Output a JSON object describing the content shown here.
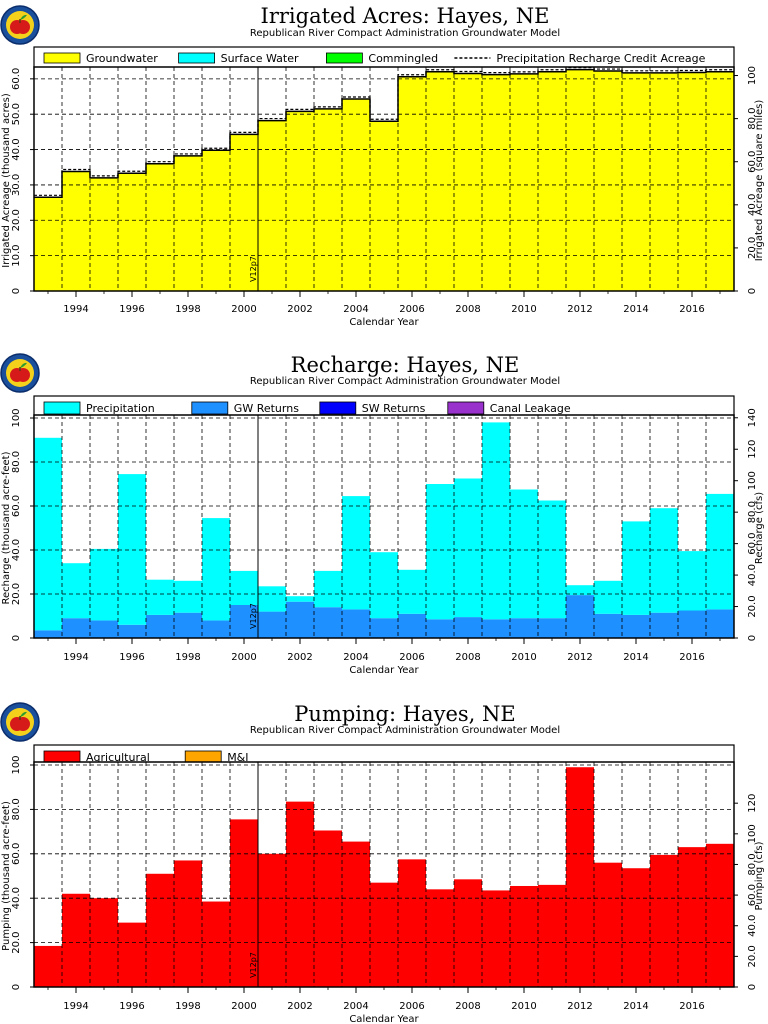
{
  "chart_data": [
    {
      "type": "area",
      "title": "Irrigated Acres: Hayes, NE",
      "subtitle": "Republican River Compact Administration Groundwater Model",
      "xlabel": "Calendar Year",
      "ylabel": "Irrigated Acreage (thousand acres)",
      "ylabel_right": "Irrigated Acreage (square miles)",
      "x_ticks": [
        "1994",
        "1996",
        "1998",
        "2000",
        "2002",
        "2004",
        "2006",
        "2008",
        "2010",
        "2012",
        "2014",
        "2016"
      ],
      "y_ticks": [
        "0",
        "10.0",
        "20.0",
        "30.0",
        "40.0",
        "50.0",
        "60.0"
      ],
      "y2_ticks": [
        "0",
        "20.0",
        "40.0",
        "60.0",
        "80.0",
        "100"
      ],
      "ylim": [
        0,
        62.5
      ],
      "marker_label": "V12p7",
      "marker_year": 2000.5,
      "legend": [
        {
          "label": "Groundwater",
          "color": "#ffff00"
        },
        {
          "label": "Surface Water",
          "color": "#00ffff"
        },
        {
          "label": "Commingled",
          "color": "#00ff00"
        },
        {
          "label": "Precipitation Recharge Credit Acreage",
          "style": "dashed"
        }
      ],
      "years": [
        1993,
        1994,
        1995,
        1996,
        1997,
        1998,
        1999,
        2000,
        2001,
        2002,
        2003,
        2004,
        2005,
        2006,
        2007,
        2008,
        2009,
        2010,
        2011,
        2012,
        2013,
        2014,
        2015,
        2016,
        2017
      ],
      "series": [
        {
          "name": "Groundwater",
          "values": [
            26.5,
            33.8,
            32.0,
            33.3,
            36.0,
            38.2,
            39.8,
            44.3,
            48.2,
            50.8,
            51.5,
            54.3,
            48.0,
            60.6,
            62.0,
            61.5,
            61.2,
            61.4,
            62.0,
            62.6,
            62.2,
            61.7,
            61.7,
            61.8,
            62.0
          ]
        }
      ]
    },
    {
      "type": "bar",
      "title": "Recharge: Hayes, NE",
      "subtitle": "Republican River Compact Administration Groundwater Model",
      "xlabel": "Calendar Year",
      "ylabel": "Recharge (thousand acre-feet)",
      "ylabel_right": "Recharge (cfs)",
      "x_ticks": [
        "1994",
        "1996",
        "1998",
        "2000",
        "2002",
        "2004",
        "2006",
        "2008",
        "2010",
        "2012",
        "2014",
        "2016"
      ],
      "y_ticks": [
        "0",
        "20.0",
        "40.0",
        "60.0",
        "80.0",
        "100"
      ],
      "y2_ticks": [
        "0",
        "20.0",
        "40.0",
        "60.0",
        "80.0",
        "100",
        "120",
        "140"
      ],
      "ylim": [
        0,
        100
      ],
      "marker_label": "V12p7",
      "marker_year": 2000.5,
      "legend": [
        {
          "label": "Precipitation",
          "color": "#00ffff"
        },
        {
          "label": "GW Returns",
          "color": "#1e90ff"
        },
        {
          "label": "SW Returns",
          "color": "#0000ff"
        },
        {
          "label": "Canal Leakage",
          "color": "#9932cc"
        }
      ],
      "years": [
        1993,
        1994,
        1995,
        1996,
        1997,
        1998,
        1999,
        2000,
        2001,
        2002,
        2003,
        2004,
        2005,
        2006,
        2007,
        2008,
        2009,
        2010,
        2011,
        2012,
        2013,
        2014,
        2015,
        2016,
        2017
      ],
      "series": [
        {
          "name": "GW Returns",
          "values": [
            3.5,
            9.0,
            8.0,
            6.0,
            10.5,
            11.5,
            8.0,
            15.0,
            12.0,
            16.5,
            14.0,
            13.0,
            9.0,
            11.0,
            8.5,
            9.5,
            8.5,
            9.0,
            9.0,
            19.5,
            11.0,
            10.5,
            11.5,
            12.5,
            13.0
          ]
        },
        {
          "name": "Precipitation",
          "values": [
            87.5,
            25.0,
            32.5,
            68.5,
            16.0,
            14.5,
            46.5,
            15.5,
            11.5,
            2.5,
            16.5,
            51.5,
            30.0,
            20.0,
            61.5,
            63.0,
            89.5,
            58.5,
            53.5,
            4.5,
            15.0,
            42.5,
            47.5,
            27.0,
            52.5
          ]
        }
      ]
    },
    {
      "type": "bar",
      "title": "Pumping: Hayes, NE",
      "subtitle": "Republican River Compact Administration Groundwater Model",
      "xlabel": "Calendar Year",
      "ylabel": "Pumping (thousand acre-feet)",
      "ylabel_right": "Pumping (cfs)",
      "x_ticks": [
        "1994",
        "1996",
        "1998",
        "2000",
        "2002",
        "2004",
        "2006",
        "2008",
        "2010",
        "2012",
        "2014",
        "2016"
      ],
      "y_ticks": [
        "0",
        "20.0",
        "40.0",
        "60.0",
        "80.0",
        "100"
      ],
      "y2_ticks": [
        "0",
        "20.0",
        "40.0",
        "60.0",
        "80.0",
        "100",
        "120"
      ],
      "ylim": [
        0,
        100
      ],
      "marker_label": "V12p7",
      "marker_year": 2000.5,
      "legend": [
        {
          "label": "Agricultural",
          "color": "#ff0000"
        },
        {
          "label": "M&I",
          "color": "#ffa500"
        }
      ],
      "years": [
        1993,
        1994,
        1995,
        1996,
        1997,
        1998,
        1999,
        2000,
        2001,
        2002,
        2003,
        2004,
        2005,
        2006,
        2007,
        2008,
        2009,
        2010,
        2011,
        2012,
        2013,
        2014,
        2015,
        2016,
        2017
      ],
      "series": [
        {
          "name": "Agricultural",
          "values": [
            18.5,
            42.0,
            40.0,
            29.0,
            51.0,
            57.0,
            38.5,
            75.5,
            60.0,
            83.5,
            70.5,
            65.5,
            47.0,
            57.5,
            44.0,
            48.5,
            43.5,
            45.5,
            46.0,
            99.0,
            56.0,
            53.5,
            59.5,
            63.0,
            64.5
          ]
        }
      ]
    }
  ]
}
